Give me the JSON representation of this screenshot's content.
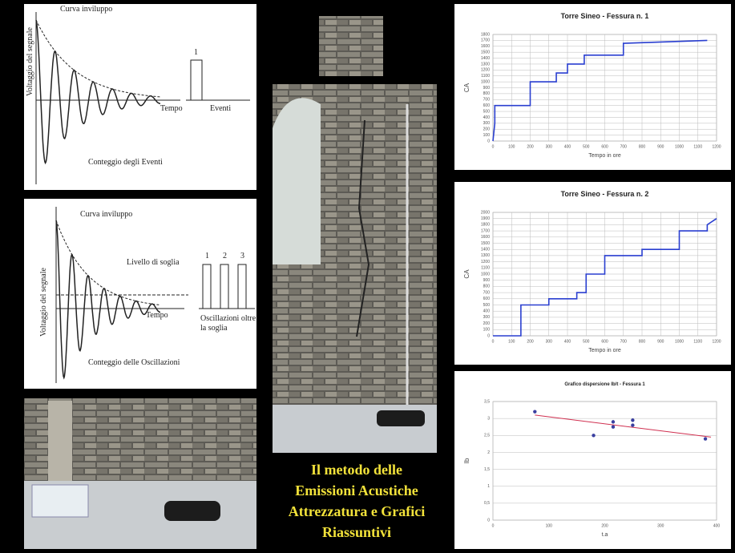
{
  "diagrams": [
    {
      "envelope": "Curva inviluppo",
      "ylabel": "Voltaggio del segnale",
      "xlabel": "Tempo",
      "pulses": [
        "1"
      ],
      "pulse_label": [
        "Eventi"
      ],
      "caption": "Conteggio degli Eventi"
    },
    {
      "envelope": "Curva inviluppo",
      "threshold": "Livello di soglia",
      "ylabel": "Voltaggio del segnale",
      "xlabel": "Tempo",
      "pulses": [
        "1",
        "2",
        "3"
      ],
      "pulse_label": [
        "Oscillazioni oltre",
        "la soglia"
      ],
      "caption": "Conteggio delle Oscillazioni"
    }
  ],
  "title": [
    "Il metodo delle",
    "Emissioni Acustiche",
    "Attrezzatura e Grafici",
    "Riassuntivi"
  ],
  "chart_data": [
    {
      "type": "line",
      "title": "Torre Sineo - Fessura n. 1",
      "xlabel": "Tempo in ore",
      "ylabel": "CA",
      "color": "#2a3fd0",
      "x": [
        0,
        10,
        10,
        200,
        200,
        340,
        340,
        400,
        400,
        490,
        490,
        700,
        700,
        1150
      ],
      "values": [
        0,
        300,
        600,
        600,
        1000,
        1000,
        1150,
        1150,
        1300,
        1300,
        1450,
        1450,
        1650,
        1700
      ],
      "xlim": [
        0,
        1200
      ],
      "xticks": [
        0,
        100,
        200,
        300,
        400,
        500,
        600,
        700,
        800,
        900,
        1000,
        1100,
        1200
      ],
      "ylim": [
        0,
        1800
      ],
      "yticks": [
        0,
        100,
        200,
        300,
        400,
        500,
        600,
        700,
        800,
        900,
        1000,
        1100,
        1200,
        1300,
        1400,
        1500,
        1600,
        1700,
        1800
      ],
      "grid": true,
      "xgrid": true
    },
    {
      "type": "line",
      "title": "Torre Sineo - Fessura n. 2",
      "xlabel": "Tempo in ore",
      "ylabel": "CA",
      "color": "#2a3fd0",
      "x": [
        0,
        150,
        150,
        300,
        300,
        450,
        450,
        500,
        500,
        600,
        600,
        800,
        800,
        1000,
        1000,
        1150,
        1150,
        1200
      ],
      "values": [
        0,
        0,
        500,
        500,
        600,
        600,
        700,
        700,
        1000,
        1000,
        1300,
        1300,
        1400,
        1400,
        1700,
        1700,
        1800,
        1900
      ],
      "xlim": [
        0,
        1200
      ],
      "xticks": [
        0,
        100,
        200,
        300,
        400,
        500,
        600,
        700,
        800,
        900,
        1000,
        1100,
        1200
      ],
      "ylim": [
        0,
        2000
      ],
      "yticks": [
        0,
        100,
        200,
        300,
        400,
        500,
        600,
        700,
        800,
        900,
        1000,
        1100,
        1200,
        1300,
        1400,
        1500,
        1600,
        1700,
        1800,
        1900,
        2000
      ],
      "grid": true,
      "xgrid": true
    },
    {
      "type": "scatter",
      "title": "Grafico dispersione Ib/t - Fessura 1",
      "xlabel": "t.a",
      "ylabel": "Ib",
      "color": "#3a3fa0",
      "x": [
        75,
        180,
        215,
        215,
        250,
        250,
        380
      ],
      "values": [
        3.2,
        2.5,
        2.9,
        2.75,
        2.95,
        2.8,
        2.4
      ],
      "trendline": {
        "x": [
          75,
          390
        ],
        "values": [
          3.1,
          2.45
        ],
        "color": "#d03050"
      },
      "xlim": [
        0,
        400
      ],
      "xticks": [
        0,
        100,
        200,
        300,
        400
      ],
      "ylim": [
        0,
        3.5
      ],
      "yticks": [
        0,
        {
          "value": 0.5,
          "label": "0,5"
        },
        1,
        {
          "value": 1.5,
          "label": "1,5"
        },
        2,
        {
          "value": 2.5,
          "label": "2,5"
        },
        3,
        {
          "value": 3.5,
          "label": "3,5"
        }
      ],
      "grid": true,
      "xgrid": false
    }
  ]
}
